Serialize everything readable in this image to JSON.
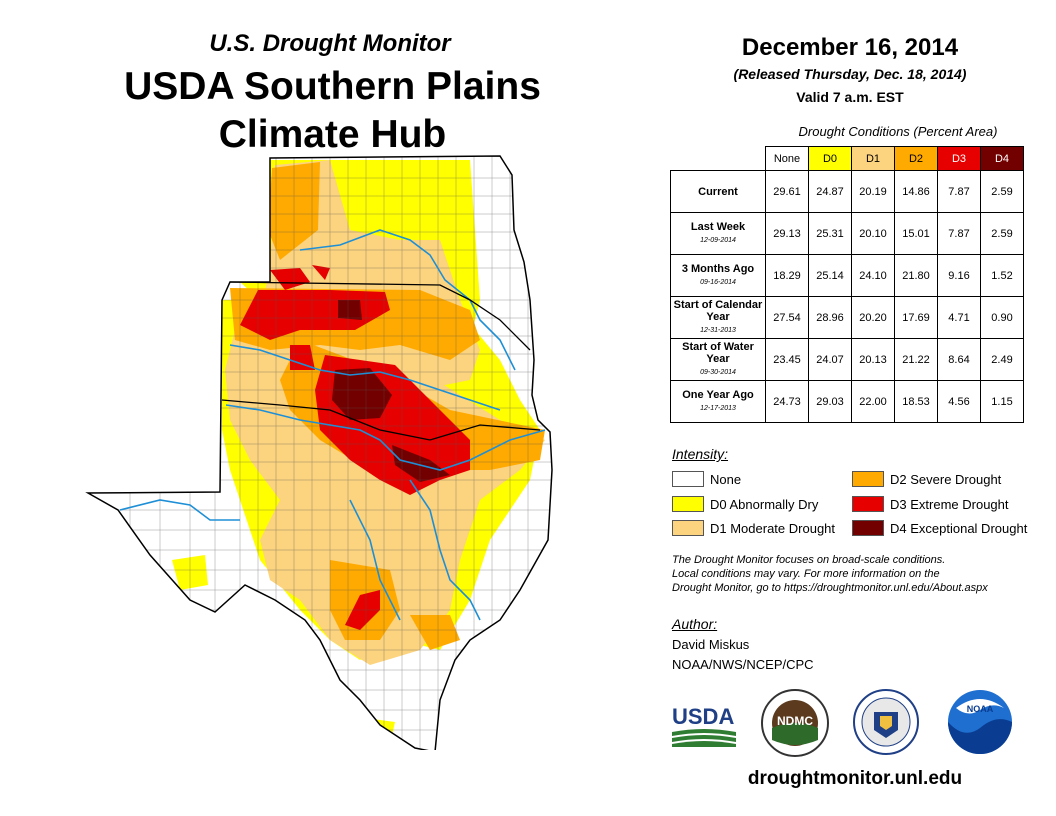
{
  "header": {
    "subtitle": "U.S. Drought Monitor",
    "title_line1": "USDA Southern Plains",
    "title_line2": "Climate Hub"
  },
  "map_info": {
    "date": "December 16, 2014",
    "released": "(Released Thursday, Dec. 18, 2014)",
    "valid": "Valid 7 a.m. EST"
  },
  "table": {
    "caption": "Drought Conditions (Percent Area)",
    "columns": [
      "None",
      "D0",
      "D1",
      "D2",
      "D3",
      "D4"
    ],
    "rows": [
      {
        "label": "Current",
        "sublabel": "",
        "values": [
          "29.61",
          "24.87",
          "20.19",
          "14.86",
          "7.87",
          "2.59"
        ]
      },
      {
        "label": "Last Week",
        "sublabel": "12-09-2014",
        "values": [
          "29.13",
          "25.31",
          "20.10",
          "15.01",
          "7.87",
          "2.59"
        ]
      },
      {
        "label": "3 Months Ago",
        "sublabel": "09-16-2014",
        "values": [
          "18.29",
          "25.14",
          "24.10",
          "21.80",
          "9.16",
          "1.52"
        ]
      },
      {
        "label": "Start of Calendar Year",
        "sublabel": "12-31-2013",
        "values": [
          "27.54",
          "28.96",
          "20.20",
          "17.69",
          "4.71",
          "0.90"
        ]
      },
      {
        "label": "Start of Water Year",
        "sublabel": "09-30-2014",
        "values": [
          "23.45",
          "24.07",
          "20.13",
          "21.22",
          "8.64",
          "2.49"
        ]
      },
      {
        "label": "One Year Ago",
        "sublabel": "12-17-2013",
        "values": [
          "24.73",
          "29.03",
          "22.00",
          "18.53",
          "4.56",
          "1.15"
        ]
      }
    ]
  },
  "legend": {
    "title": "Intensity:",
    "items": [
      {
        "label": "None",
        "color": "#ffffff"
      },
      {
        "label": "D0 Abnormally Dry",
        "color": "#ffff00"
      },
      {
        "label": "D1 Moderate Drought",
        "color": "#fcd37f"
      },
      {
        "label": "D2 Severe Drought",
        "color": "#ffaa00"
      },
      {
        "label": "D3 Extreme Drought",
        "color": "#e60000"
      },
      {
        "label": "D4 Exceptional Drought",
        "color": "#730000"
      }
    ]
  },
  "note": {
    "line1": "The Drought Monitor focuses on broad-scale conditions.",
    "line2": "Local conditions may vary. For more information on the",
    "line3": "Drought Monitor, go to https://droughtmonitor.unl.edu/About.aspx"
  },
  "author": {
    "label": "Author:",
    "name": "David Miskus",
    "org": "NOAA/NWS/NCEP/CPC"
  },
  "logos": {
    "usda": "USDA",
    "ndmc": "NDMC",
    "noaa": "NOAA"
  },
  "footer_url": "droughtmonitor.unl.edu"
}
